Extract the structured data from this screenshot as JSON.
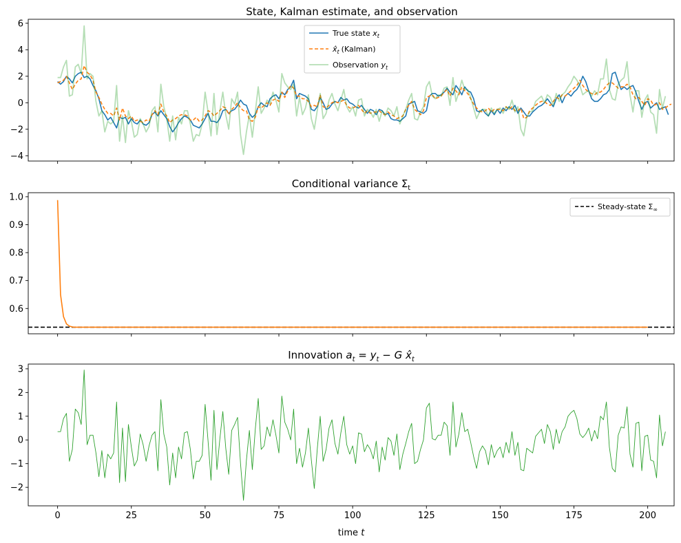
{
  "chart_data": [
    {
      "type": "line",
      "title": "State, Kalman estimate, and observation",
      "xlim": [
        -9.95,
        208.95
      ],
      "ylim": [
        -4.4,
        6.3
      ],
      "xticks": [
        0,
        25,
        50,
        75,
        100,
        125,
        150,
        175,
        200
      ],
      "yticks": [
        -4,
        -2,
        0,
        2,
        4,
        6
      ],
      "ytick_labels": [
        "−4",
        "−2",
        "0",
        "2",
        "4",
        "6"
      ],
      "legend_position": "top-center",
      "series": [
        {
          "name": "True state x_t",
          "legend_label": "True state",
          "legend_var": "x",
          "legend_sub": "t",
          "color": "#1f77b4",
          "dash": "",
          "opacity": 1,
          "width": 1.6,
          "values": [
            1.6,
            1.4,
            1.6,
            2.0,
            1.8,
            1.5,
            2.0,
            2.2,
            2.3,
            1.9,
            2.0,
            1.8,
            1.3,
            0.9,
            0.3,
            -0.6,
            -0.9,
            -1.3,
            -1.1,
            -1.5,
            -1.9,
            -1.1,
            -1.2,
            -1.1,
            -1.6,
            -1.2,
            -1.5,
            -1.6,
            -1.3,
            -1.6,
            -1.7,
            -1.5,
            -0.9,
            -0.7,
            -1.0,
            -0.6,
            -0.9,
            -1.2,
            -1.8,
            -2.2,
            -1.9,
            -1.5,
            -1.2,
            -1.0,
            -1.1,
            -1.3,
            -1.7,
            -1.8,
            -1.9,
            -1.6,
            -1.2,
            -0.8,
            -1.4,
            -1.4,
            -1.5,
            -1.2,
            -0.6,
            -0.5,
            -0.8,
            -0.6,
            -0.5,
            -0.2,
            0.2,
            -0.1,
            -0.2,
            -0.8,
            -1.1,
            -0.9,
            -0.3,
            0.0,
            -0.2,
            -0.3,
            0.3,
            0.5,
            0.6,
            0.3,
            0.8,
            0.6,
            1.0,
            1.2,
            1.7,
            0.3,
            0.7,
            0.6,
            0.5,
            0.3,
            -0.5,
            -0.6,
            -0.3,
            0.4,
            0.0,
            -0.5,
            -0.4,
            -0.1,
            0.1,
            0.0,
            0.4,
            0.2,
            0.3,
            0.0,
            -0.1,
            -0.3,
            -0.4,
            -0.2,
            -0.5,
            -0.8,
            -0.5,
            -0.6,
            -0.9,
            -0.5,
            -0.6,
            -0.9,
            -0.8,
            -1.2,
            -1.3,
            -1.3,
            -1.4,
            -1.2,
            -1.0,
            -0.1,
            0.0,
            0.1,
            -0.6,
            -0.7,
            -0.8,
            -0.6,
            0.5,
            0.7,
            0.7,
            0.5,
            0.6,
            0.8,
            1.1,
            0.8,
            0.6,
            1.3,
            1.0,
            0.6,
            1.2,
            0.9,
            0.8,
            0.3,
            -0.6,
            -0.7,
            -0.5,
            -0.8,
            -1.0,
            -0.6,
            -0.9,
            -0.5,
            -0.8,
            -0.4,
            -0.6,
            -0.3,
            -0.5,
            -0.2,
            -0.8,
            -0.4,
            -0.7,
            -1.0,
            -1.0,
            -0.7,
            -0.5,
            -0.3,
            -0.2,
            0.0,
            0.3,
            0.0,
            -0.3,
            0.3,
            0.6,
            0.0,
            0.5,
            0.7,
            0.5,
            0.8,
            1.0,
            1.4,
            2.0,
            1.6,
            0.9,
            0.3,
            0.1,
            0.1,
            0.3,
            0.6,
            0.7,
            1.0,
            2.2,
            2.3,
            1.6,
            1.0,
            1.2,
            1.0,
            1.2,
            1.3,
            0.8,
            0.1,
            -0.5,
            0.0,
            0.1,
            -0.4,
            -0.2,
            0.0,
            -0.5,
            -0.4,
            -0.3,
            -0.9
          ]
        },
        {
          "name": "x̂_t (Kalman)",
          "legend_label": "(Kalman)",
          "legend_var": "x̂",
          "legend_sub": "t",
          "color": "#ff7f0e",
          "dash": "5,3",
          "opacity": 1,
          "width": 1.6,
          "values": [
            1.5,
            1.6,
            1.7,
            2.0,
            1.5,
            1.0,
            1.4,
            1.7,
            1.8,
            2.8,
            2.3,
            2.1,
            1.7,
            0.8,
            0.4,
            -0.1,
            -0.5,
            -0.8,
            -0.8,
            -1.0,
            -0.4,
            -1.3,
            -0.4,
            -1.0,
            -1.2,
            -1.0,
            -1.4,
            -1.3,
            -1.4,
            -1.5,
            -1.3,
            -1.4,
            -0.9,
            -0.6,
            -0.9,
            -0.1,
            -0.7,
            -1.0,
            -1.5,
            -1.3,
            -1.2,
            -1.0,
            -0.9,
            -0.9,
            -1.0,
            -1.3,
            -1.3,
            -1.1,
            -1.4,
            -1.3,
            -1.0,
            -0.6,
            -0.7,
            -1.0,
            -0.8,
            -0.6,
            -0.3,
            -0.4,
            -0.9,
            -0.5,
            -0.3,
            0.0,
            -0.4,
            -0.6,
            -0.6,
            -1.3,
            -1.4,
            -1.1,
            -0.3,
            -0.4,
            -0.2,
            0.0,
            -0.2,
            0.2,
            0.3,
            0.1,
            0.8,
            0.4,
            0.9,
            1.3,
            1.1,
            0.5,
            0.5,
            0.3,
            0.3,
            0.1,
            -0.3,
            -0.2,
            -0.3,
            0.6,
            -0.3,
            -0.4,
            -0.2,
            0.0,
            0.1,
            0.0,
            0.1,
            0.2,
            -0.2,
            -0.4,
            -0.4,
            -0.3,
            -0.2,
            -0.5,
            -0.8,
            -0.6,
            -0.8,
            -0.7,
            -0.7,
            -0.6,
            -0.8,
            -0.9,
            -0.7,
            -0.9,
            -1.0,
            -1.2,
            -1.1,
            -1.0,
            -0.5,
            -0.2,
            0.1,
            -0.5,
            -0.7,
            -0.9,
            -0.6,
            0.4,
            0.5,
            0.6,
            0.3,
            0.4,
            0.5,
            0.8,
            1.0,
            0.5,
            1.1,
            0.9,
            0.6,
            1.2,
            0.9,
            0.7,
            0.3,
            -0.1,
            -0.4,
            -0.6,
            -0.7,
            -0.6,
            -0.4,
            -0.7,
            -0.5,
            -0.5,
            -0.5,
            -0.6,
            -0.3,
            -0.5,
            -0.3,
            -0.6,
            -0.6,
            -0.4,
            -1.2,
            -1.1,
            -0.6,
            -0.4,
            -0.2,
            0.0,
            0.1,
            0.1,
            -0.1,
            -0.2,
            0.1,
            0.4,
            0.3,
            0.6,
            0.5,
            0.7,
            0.9,
            1.1,
            1.3,
            1.7,
            1.3,
            1.0,
            0.8,
            0.7,
            0.6,
            0.8,
            0.8,
            1.0,
            1.3,
            1.5,
            1.5,
            1.3,
            1.1,
            1.2,
            1.2,
            1.4,
            1.2,
            0.6,
            0.3,
            0.4,
            0.1,
            -0.2,
            0.3,
            0.2,
            -0.2,
            -0.1,
            0.0,
            -0.5,
            -0.4,
            -0.2,
            -0.1
          ]
        },
        {
          "name": "Observation y_t",
          "legend_label": "Observation",
          "legend_var": "y",
          "legend_sub": "t",
          "color": "#2ca02c",
          "dash": "",
          "opacity": 0.35,
          "width": 1.8,
          "values": [
            1.9,
            1.9,
            2.7,
            3.2,
            0.5,
            0.6,
            2.7,
            2.9,
            2.2,
            5.8,
            1.8,
            2.2,
            2.0,
            0.1,
            -1.0,
            -0.6,
            -2.2,
            -1.4,
            -1.6,
            -1.4,
            1.3,
            -2.9,
            -1.0,
            -3.0,
            -0.6,
            -1.4,
            -2.6,
            -2.4,
            -1.2,
            -1.6,
            -2.2,
            -1.8,
            -0.6,
            -0.3,
            -2.2,
            1.4,
            -0.3,
            -1.2,
            -2.9,
            -1.0,
            -2.8,
            -1.1,
            -1.6,
            -0.6,
            -0.6,
            -1.6,
            -2.9,
            -2.4,
            -2.5,
            -1.6,
            0.8,
            -0.7,
            -2.5,
            0.7,
            -2.4,
            -0.6,
            0.8,
            -0.9,
            -2.0,
            0.3,
            -0.1,
            0.8,
            -2.4,
            -3.9,
            -2.2,
            -0.9,
            -2.6,
            -0.7,
            1.2,
            -0.8,
            -0.4,
            0.2,
            -0.1,
            0.8,
            0.2,
            -0.7,
            2.2,
            1.5,
            1.2,
            1.0,
            1.4,
            -1.0,
            0.4,
            -0.9,
            -0.4,
            0.6,
            -1.2,
            -2.0,
            -0.6,
            0.7,
            -1.2,
            -0.8,
            0.2,
            0.7,
            -0.1,
            -0.6,
            0.2,
            1.0,
            -0.3,
            -0.7,
            -0.3,
            -1.0,
            0.2,
            0.3,
            -1.0,
            -0.5,
            -0.7,
            -1.1,
            -0.5,
            -1.4,
            -0.6,
            -1.0,
            -0.4,
            -0.6,
            -1.0,
            -0.3,
            -1.6,
            -1.0,
            -0.5,
            0.2,
            0.7,
            -1.2,
            -1.3,
            -0.7,
            -0.3,
            1.2,
            1.6,
            0.5,
            0.3,
            0.6,
            0.5,
            1.1,
            1.2,
            -0.2,
            1.9,
            0.1,
            0.8,
            1.7,
            1.0,
            1.0,
            0.4,
            -0.4,
            -1.2,
            -0.7,
            -0.5,
            -0.5,
            -1.0,
            -0.4,
            -0.8,
            -0.5,
            -0.4,
            -0.8,
            -0.3,
            -0.5,
            0.2,
            -0.7,
            -0.3,
            -2.0,
            -2.5,
            -1.1,
            -0.7,
            -0.6,
            0.1,
            0.3,
            0.5,
            0.0,
            0.6,
            0.4,
            -0.2,
            0.7,
            0.1,
            0.6,
            0.8,
            1.2,
            1.5,
            2.0,
            1.7,
            1.3,
            0.6,
            0.8,
            0.9,
            0.5,
            0.9,
            0.6,
            1.8,
            1.8,
            3.3,
            1.0,
            0.3,
            0.2,
            1.4,
            1.7,
            1.9,
            3.1,
            0.6,
            -0.7,
            0.9,
            0.9,
            -1.1,
            0.2,
            0.6,
            -0.7,
            -0.9,
            -2.3,
            1.0,
            -0.4,
            0.5
          ]
        }
      ]
    },
    {
      "type": "line",
      "title": "Conditional variance Σ_t",
      "title_main": "Conditional variance Σ",
      "title_sub": "t",
      "xlim": [
        -9.95,
        208.95
      ],
      "ylim": [
        0.5095,
        1.0145
      ],
      "xticks": [
        0,
        25,
        50,
        75,
        100,
        125,
        150,
        175,
        200
      ],
      "yticks": [
        0.6,
        0.7,
        0.8,
        0.9,
        1.0
      ],
      "ytick_labels": [
        "0.6",
        "0.7",
        "0.8",
        "0.9",
        "1.0"
      ],
      "legend_position": "top-right",
      "series": [
        {
          "name": "Σ_t",
          "color": "#ff7f0e",
          "x": [
            0,
            1,
            2,
            3,
            4,
            5,
            6,
            7,
            8,
            9,
            10,
            200
          ],
          "values": [
            0.988,
            0.65,
            0.571,
            0.545,
            0.537,
            0.534,
            0.533,
            0.533,
            0.533,
            0.533,
            0.533,
            0.533
          ]
        }
      ],
      "hline": {
        "name": "Steady-state Σ_∞",
        "legend_label": "Steady-state Σ",
        "legend_sub": "∞",
        "value": 0.533,
        "color": "#000000"
      }
    },
    {
      "type": "line",
      "title": "Innovation a_t = y_t − G x̂_t",
      "xlim": [
        -9.95,
        208.95
      ],
      "ylim": [
        -2.78,
        3.2
      ],
      "xticks": [
        0,
        25,
        50,
        75,
        100,
        125,
        150,
        175,
        200
      ],
      "xtick_labels": [
        "0",
        "25",
        "50",
        "75",
        "100",
        "125",
        "150",
        "175",
        "200"
      ],
      "yticks": [
        -2,
        -1,
        0,
        1,
        2,
        3
      ],
      "ytick_labels": [
        "−2",
        "−1",
        "0",
        "1",
        "2",
        "3"
      ],
      "xlabel": "time t",
      "series": [
        {
          "name": "a_t",
          "color": "#2ca02c",
          "values": [
            0.35,
            0.35,
            0.9,
            1.12,
            -0.9,
            -0.4,
            1.3,
            1.15,
            0.65,
            2.95,
            -0.2,
            0.2,
            0.2,
            -0.55,
            -1.55,
            -0.45,
            -1.6,
            -0.6,
            -0.8,
            -0.55,
            1.6,
            -1.8,
            0.5,
            -1.75,
            0.65,
            -0.3,
            -1.1,
            -0.85,
            0.25,
            -0.2,
            -0.9,
            -0.25,
            0.2,
            0.35,
            -1.3,
            1.7,
            0.25,
            -0.3,
            -1.9,
            -0.55,
            -1.6,
            -0.3,
            -0.8,
            0.3,
            0.35,
            -0.4,
            -1.65,
            -0.9,
            -0.9,
            -0.65,
            1.5,
            -0.05,
            -1.7,
            1.25,
            -1.25,
            0.05,
            1.2,
            -0.35,
            -1.45,
            0.4,
            0.65,
            0.95,
            -1.0,
            -2.55,
            -0.85,
            0.4,
            -1.25,
            0.45,
            1.75,
            -0.4,
            -0.25,
            0.55,
            0.15,
            0.85,
            0.2,
            -0.55,
            1.85,
            0.75,
            0.45,
            0.0,
            1.3,
            -1.0,
            -0.35,
            -1.15,
            -0.55,
            0.5,
            -0.85,
            -2.05,
            -0.4,
            1.0,
            -0.9,
            -0.4,
            0.5,
            0.85,
            -0.15,
            -0.6,
            0.3,
            1.0,
            -0.2,
            -0.6,
            -0.25,
            -1.0,
            0.3,
            0.25,
            -0.5,
            -0.2,
            -0.4,
            -0.8,
            -0.05,
            -1.35,
            -0.3,
            -0.85,
            0.1,
            -0.05,
            -0.65,
            0.25,
            -1.25,
            -0.6,
            -0.15,
            0.35,
            0.7,
            -1.0,
            -0.9,
            -0.4,
            0.0,
            1.35,
            1.55,
            0.05,
            0.0,
            0.2,
            0.2,
            0.75,
            0.6,
            -0.65,
            1.6,
            -0.3,
            0.25,
            1.15,
            0.35,
            0.45,
            -0.1,
            -0.7,
            -1.2,
            -0.5,
            -0.25,
            -0.45,
            -1.05,
            -0.2,
            -0.75,
            -0.45,
            -0.3,
            -0.75,
            -0.1,
            -0.55,
            0.35,
            -0.65,
            -0.1,
            -1.25,
            -1.3,
            -0.35,
            -0.45,
            -0.55,
            0.15,
            0.3,
            0.45,
            -0.15,
            0.65,
            0.35,
            -0.4,
            0.45,
            -0.15,
            0.35,
            0.55,
            1.0,
            1.15,
            1.25,
            0.9,
            0.25,
            0.1,
            0.25,
            0.5,
            -0.05,
            0.4,
            0.05,
            1.0,
            0.85,
            1.6,
            -0.3,
            -1.2,
            -1.35,
            0.2,
            0.55,
            0.5,
            1.4,
            -0.6,
            -1.15,
            0.7,
            0.75,
            -1.3,
            0.15,
            0.2,
            -0.85,
            -0.9,
            -1.6,
            1.05,
            -0.25,
            0.35
          ]
        }
      ]
    }
  ]
}
